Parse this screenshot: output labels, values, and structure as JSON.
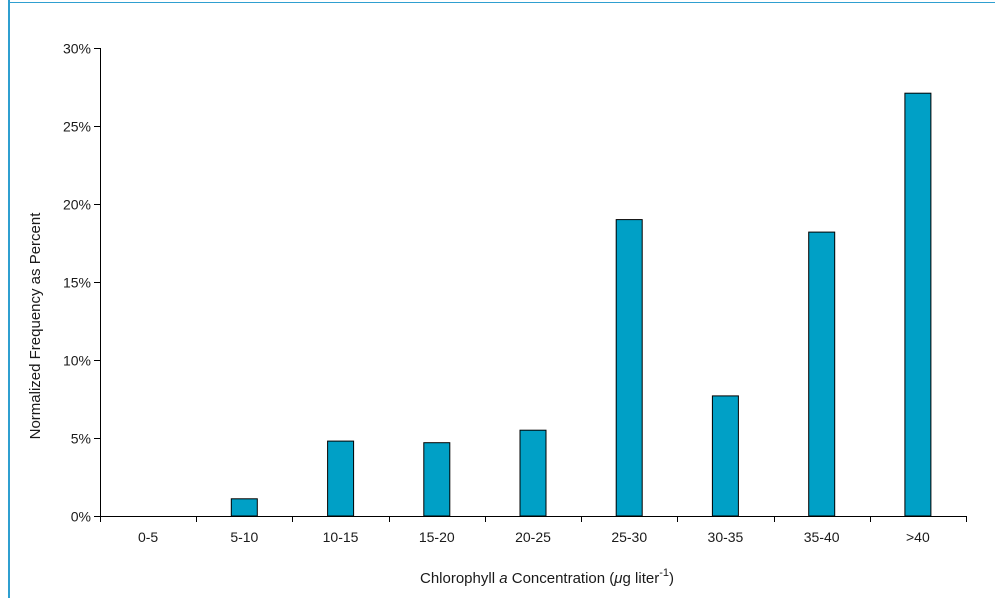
{
  "chart_data": {
    "type": "bar",
    "categories": [
      "0-5",
      "5-10",
      "10-15",
      "15-20",
      "20-25",
      "25-30",
      "30-35",
      "35-40",
      ">40"
    ],
    "values": [
      0,
      1.1,
      4.8,
      4.7,
      5.5,
      19.0,
      7.7,
      18.2,
      27.1
    ],
    "ylim": [
      0,
      30
    ],
    "yticks": [
      0,
      5,
      10,
      15,
      20,
      25,
      30
    ],
    "ytick_labels": [
      "0%",
      "5%",
      "10%",
      "15%",
      "20%",
      "25%",
      "30%"
    ],
    "ylabel": "Normalized Frequency as Percent",
    "xlabel": {
      "prefix": "Chlorophyll ",
      "italic": "a",
      "middle": " Concentration (",
      "mu": "μ",
      "unit": "g liter",
      "superscript": "-1",
      "suffix": ")"
    },
    "bar_color": "#00a0c6",
    "grid": false,
    "legend": "none"
  }
}
